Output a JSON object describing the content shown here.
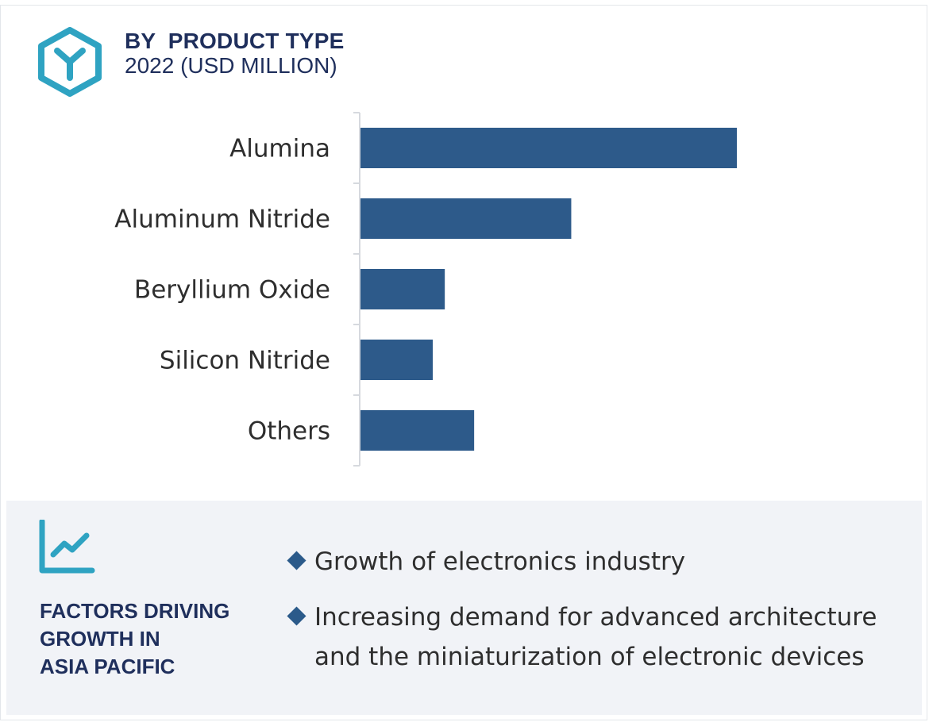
{
  "header": {
    "title": "BY  PRODUCT TYPE",
    "subtitle": "2022 (USD MILLION)",
    "icon": "hexagon-y-icon"
  },
  "colors": {
    "bar": "#2d5a8a",
    "title": "#1f2f5c",
    "icon_teal": "#2fa3c2",
    "panel_bg": "#f1f3f7",
    "axis": "#d6d9de"
  },
  "chart_data": {
    "type": "bar",
    "orientation": "horizontal",
    "title": "BY  PRODUCT TYPE",
    "subtitle": "2022 (USD MILLION)",
    "categories": [
      "Alumina",
      "Aluminum Nitride",
      "Beryllium Oxide",
      "Silicon Nitride",
      "Others"
    ],
    "values": [
      100,
      56,
      22.4,
      19.2,
      30.2
    ],
    "xlabel": "",
    "ylabel": "",
    "xlim": [
      0,
      100
    ],
    "grid": false,
    "legend": "none",
    "value_axis_labels": "none"
  },
  "factors": {
    "icon": "trend-line-chart-icon",
    "title_lines": [
      "FACTORS DRIVING",
      "GROWTH IN",
      "ASIA PACIFIC"
    ],
    "items": [
      {
        "text": "Growth of electronics industry"
      },
      {
        "text": "Increasing demand for advanced architecture and the miniaturization of electronic devices"
      }
    ]
  }
}
